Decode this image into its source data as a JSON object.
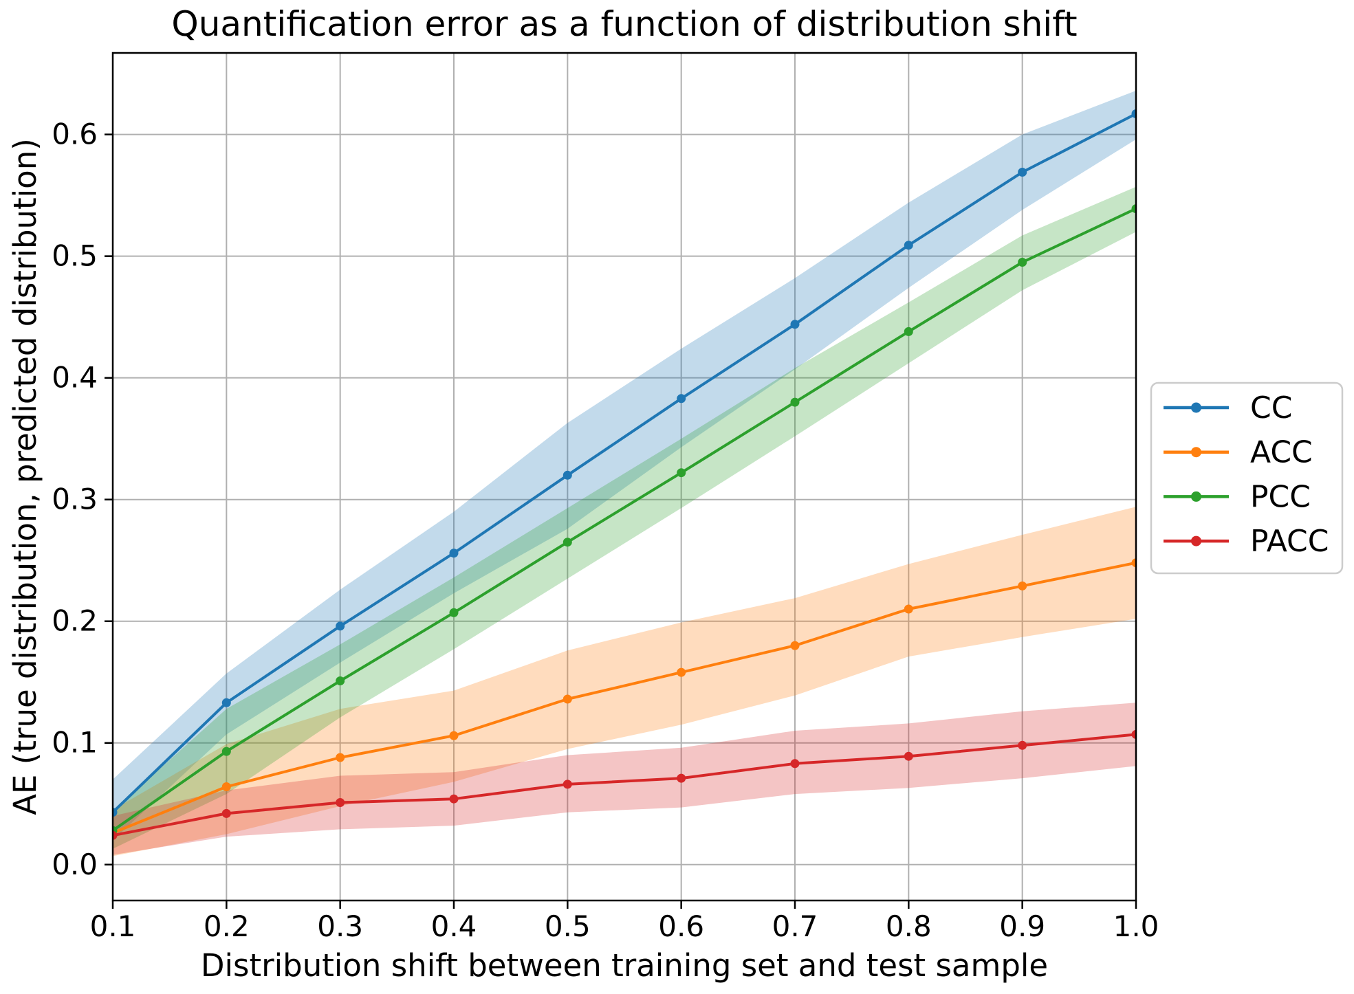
{
  "figure": {
    "background": "#ffffff",
    "text_color": "#000000",
    "grid_color": "#b0b0b0",
    "spine_color": "#000000",
    "legend_border_color": "#cccccc",
    "legend_background": "#ffffff"
  },
  "chart_data": {
    "type": "line",
    "title": "Quantification error as a function of distribution shift",
    "xlabel": "Distribution shift between training set and test sample",
    "ylabel": "AE (true distribution, predicted distribution)",
    "grid": true,
    "legend_position": "right outside axes, vertical",
    "xlim": [
      0.1,
      1.0
    ],
    "ylim": [
      -0.0295,
      0.667
    ],
    "xticks": [
      "0.1",
      "0.2",
      "0.3",
      "0.4",
      "0.5",
      "0.6",
      "0.7",
      "0.8",
      "0.9",
      "1.0"
    ],
    "yticks": [
      "0.0",
      "0.1",
      "0.2",
      "0.3",
      "0.4",
      "0.5",
      "0.6"
    ],
    "x": [
      0.1,
      0.2,
      0.3,
      0.4,
      0.5,
      0.6,
      0.7,
      0.8,
      0.9,
      1.0
    ],
    "band_alpha": 0.27,
    "series": [
      {
        "name": "CC",
        "color": "#1f77b4",
        "values": [
          0.043,
          0.133,
          0.196,
          0.256,
          0.32,
          0.383,
          0.444,
          0.509,
          0.569,
          0.617
        ],
        "band_lower": [
          0.02,
          0.107,
          0.166,
          0.223,
          0.276,
          0.343,
          0.407,
          0.474,
          0.538,
          0.596
        ],
        "band_upper": [
          0.07,
          0.157,
          0.226,
          0.29,
          0.363,
          0.424,
          0.482,
          0.544,
          0.6,
          0.636
        ]
      },
      {
        "name": "ACC",
        "color": "#ff7f0e",
        "values": [
          0.026,
          0.064,
          0.088,
          0.106,
          0.136,
          0.158,
          0.18,
          0.21,
          0.229,
          0.248
        ],
        "band_lower": [
          0.007,
          0.025,
          0.048,
          0.068,
          0.095,
          0.115,
          0.139,
          0.171,
          0.187,
          0.202
        ],
        "band_upper": [
          0.045,
          0.099,
          0.128,
          0.143,
          0.176,
          0.199,
          0.219,
          0.247,
          0.271,
          0.294
        ]
      },
      {
        "name": "PCC",
        "color": "#2ca02c",
        "values": [
          0.028,
          0.093,
          0.151,
          0.207,
          0.265,
          0.322,
          0.38,
          0.438,
          0.495,
          0.539
        ],
        "band_lower": [
          0.013,
          0.058,
          0.121,
          0.177,
          0.235,
          0.293,
          0.352,
          0.412,
          0.472,
          0.52
        ],
        "band_upper": [
          0.044,
          0.128,
          0.181,
          0.236,
          0.293,
          0.35,
          0.408,
          0.462,
          0.517,
          0.557
        ]
      },
      {
        "name": "PACC",
        "color": "#d62728",
        "values": [
          0.024,
          0.042,
          0.051,
          0.054,
          0.066,
          0.071,
          0.083,
          0.089,
          0.098,
          0.107
        ],
        "band_lower": [
          0.008,
          0.023,
          0.029,
          0.032,
          0.043,
          0.047,
          0.058,
          0.063,
          0.071,
          0.081
        ],
        "band_upper": [
          0.04,
          0.061,
          0.073,
          0.076,
          0.09,
          0.096,
          0.11,
          0.116,
          0.126,
          0.133
        ]
      }
    ]
  }
}
